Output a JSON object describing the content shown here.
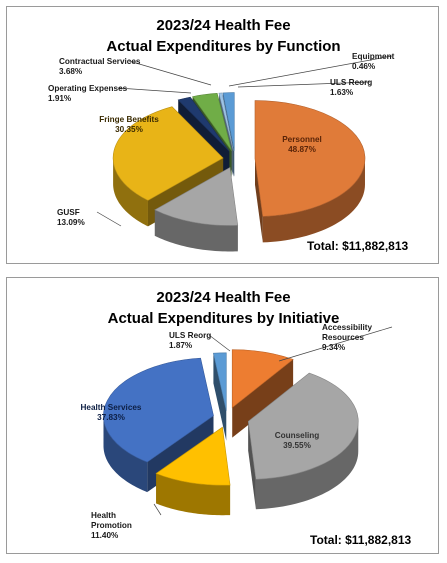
{
  "chart_data": [
    {
      "type": "pie",
      "title": "2023/24 Health Fee",
      "subtitle": "Actual Expenditures by Function",
      "total_label": "Total:  $11,882,813",
      "slices": [
        {
          "label": "Personnel",
          "value": 48.87,
          "display": "48.87%",
          "color": "#E07B39"
        },
        {
          "label": "GUSF",
          "value": 13.09,
          "display": "13.09%",
          "color": "#A6A6A6"
        },
        {
          "label": "Fringe Benefits",
          "value": 30.35,
          "display": "30.35%",
          "color": "#E8B417"
        },
        {
          "label": "Operating Expenses",
          "value": 1.91,
          "display": "1.91%",
          "color": "#1F3A6E"
        },
        {
          "label": "Contractual Services",
          "value": 3.68,
          "display": "3.68%",
          "color": "#70AD47"
        },
        {
          "label": "Equipment",
          "value": 0.46,
          "display": "0.46%",
          "color": "#9DC3E6"
        },
        {
          "label": "ULS Reorg",
          "value": 1.63,
          "display": "1.63%",
          "color": "#5B9BD5"
        }
      ]
    },
    {
      "type": "pie",
      "title": "2023/24 Health Fee",
      "subtitle": "Actual Expenditures by Initiative",
      "total_label": "Total:  $11,882,813",
      "slices": [
        {
          "label": "Accessibility Resources",
          "value": 9.34,
          "display": "9.34%",
          "color": "#ED7D31"
        },
        {
          "label": "Counseling",
          "value": 39.55,
          "display": "39.55%",
          "color": "#A6A6A6"
        },
        {
          "label": "Health Promotion",
          "value": 11.4,
          "display": "11.40%",
          "color": "#FFC000"
        },
        {
          "label": "Health Services",
          "value": 37.83,
          "display": "37.83%",
          "color": "#4472C4"
        },
        {
          "label": "ULS Reorg",
          "value": 1.87,
          "display": "1.87%",
          "color": "#5B9BD5"
        }
      ]
    }
  ]
}
